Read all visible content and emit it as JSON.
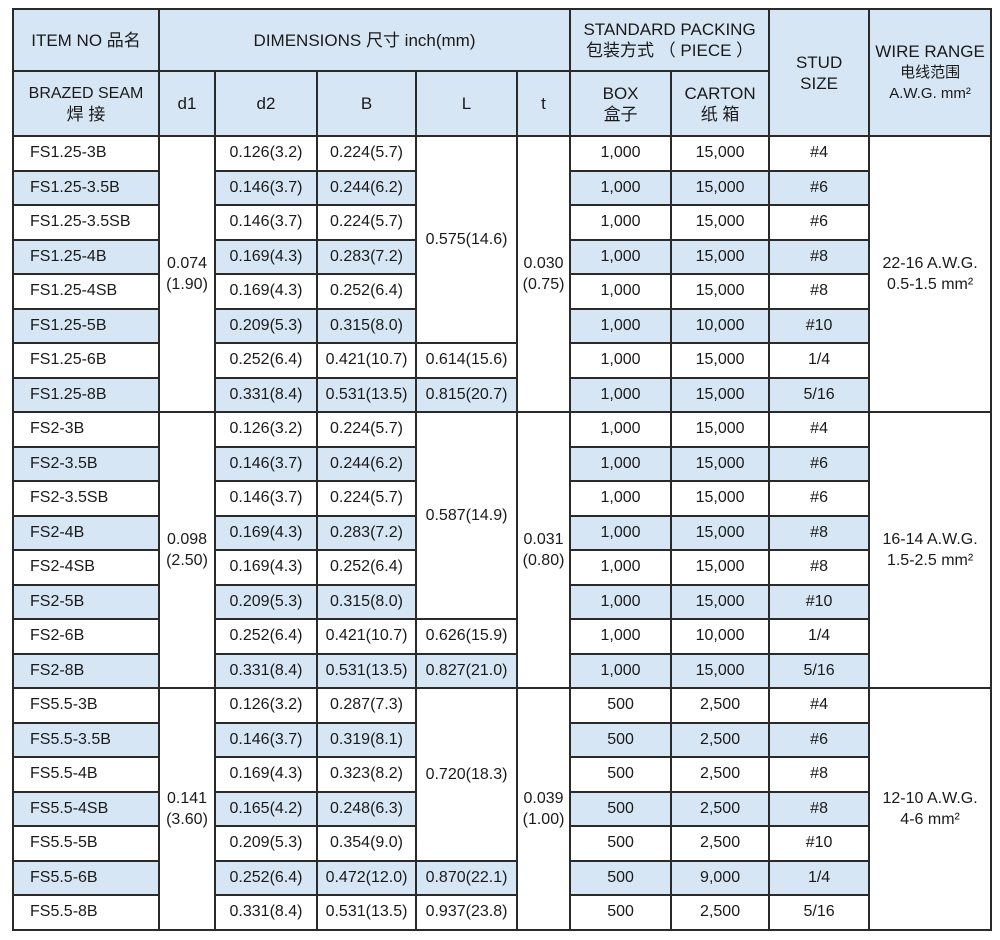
{
  "header": {
    "item_no": "ITEM NO 品名",
    "dimensions": "DIMENSIONS 尺寸  inch(mm)",
    "standard_packing": "STANDARD PACKING",
    "standard_packing_cn": "包装方式 （ PIECE ）",
    "stud_size": "STUD SIZE",
    "wire_range": "WIRE RANGE",
    "wire_range_cn": "电线范围",
    "wire_range_unit": "A.W.G.  mm²",
    "brazed_seam": "BRAZED  SEAM",
    "brazed_seam_cn": "焊  接",
    "d1": "d1",
    "d2": "d2",
    "B": "B",
    "L": "L",
    "t": "t",
    "box": "BOX",
    "box_cn": "盒子",
    "carton": "CARTON",
    "carton_cn": "纸 箱"
  },
  "colors": {
    "header_bg": "#d7e6f4",
    "alt_row_bg": "#d7e6f4",
    "border": "#2a2a2a"
  },
  "groups": [
    {
      "d1": "0.074 (1.90)",
      "t": "0.030 (0.75)",
      "wire": "22-16 A.W.G. 0.5-1.5  mm²",
      "L_shared": "0.575(14.6)",
      "L_shared_rows": 6,
      "rows": [
        {
          "item": "FS1.25-3B",
          "d2": "0.126(3.2)",
          "B": "0.224(5.7)",
          "box": "1,000",
          "carton": "15,000",
          "stud": "#4"
        },
        {
          "item": "FS1.25-3.5B",
          "d2": "0.146(3.7)",
          "B": "0.244(6.2)",
          "box": "1,000",
          "carton": "15,000",
          "stud": "#6"
        },
        {
          "item": "FS1.25-3.5SB",
          "d2": "0.146(3.7)",
          "B": "0.224(5.7)",
          "box": "1,000",
          "carton": "15,000",
          "stud": "#6"
        },
        {
          "item": "FS1.25-4B",
          "d2": "0.169(4.3)",
          "B": "0.283(7.2)",
          "box": "1,000",
          "carton": "15,000",
          "stud": "#8"
        },
        {
          "item": "FS1.25-4SB",
          "d2": "0.169(4.3)",
          "B": "0.252(6.4)",
          "box": "1,000",
          "carton": "15,000",
          "stud": "#8"
        },
        {
          "item": "FS1.25-5B",
          "d2": "0.209(5.3)",
          "B": "0.315(8.0)",
          "box": "1,000",
          "carton": "10,000",
          "stud": "#10"
        },
        {
          "item": "FS1.25-6B",
          "d2": "0.252(6.4)",
          "B": "0.421(10.7)",
          "L": "0.614(15.6)",
          "box": "1,000",
          "carton": "15,000",
          "stud": "1/4"
        },
        {
          "item": "FS1.25-8B",
          "d2": "0.331(8.4)",
          "B": "0.531(13.5)",
          "L": "0.815(20.7)",
          "box": "1,000",
          "carton": "15,000",
          "stud": "5/16"
        }
      ]
    },
    {
      "d1": "0.098 (2.50)",
      "t": "0.031 (0.80)",
      "wire": "16-14 A.W.G. 1.5-2.5  mm²",
      "L_shared": "0.587(14.9)",
      "L_shared_rows": 6,
      "rows": [
        {
          "item": "FS2-3B",
          "d2": "0.126(3.2)",
          "B": "0.224(5.7)",
          "box": "1,000",
          "carton": "15,000",
          "stud": "#4"
        },
        {
          "item": "FS2-3.5B",
          "d2": "0.146(3.7)",
          "B": "0.244(6.2)",
          "box": "1,000",
          "carton": "15,000",
          "stud": "#6"
        },
        {
          "item": "FS2-3.5SB",
          "d2": "0.146(3.7)",
          "B": "0.224(5.7)",
          "box": "1,000",
          "carton": "15,000",
          "stud": "#6"
        },
        {
          "item": "FS2-4B",
          "d2": "0.169(4.3)",
          "B": "0.283(7.2)",
          "box": "1,000",
          "carton": "15,000",
          "stud": "#8"
        },
        {
          "item": "FS2-4SB",
          "d2": "0.169(4.3)",
          "B": "0.252(6.4)",
          "box": "1,000",
          "carton": "15,000",
          "stud": "#8"
        },
        {
          "item": "FS2-5B",
          "d2": "0.209(5.3)",
          "B": "0.315(8.0)",
          "box": "1,000",
          "carton": "15,000",
          "stud": "#10"
        },
        {
          "item": "FS2-6B",
          "d2": "0.252(6.4)",
          "B": "0.421(10.7)",
          "L": "0.626(15.9)",
          "box": "1,000",
          "carton": "10,000",
          "stud": "1/4"
        },
        {
          "item": "FS2-8B",
          "d2": "0.331(8.4)",
          "B": "0.531(13.5)",
          "L": "0.827(21.0)",
          "box": "1,000",
          "carton": "15,000",
          "stud": "5/16"
        }
      ]
    },
    {
      "d1": "0.141 (3.60)",
      "t": "0.039 (1.00)",
      "wire": "12-10 A.W.G. 4-6  mm²",
      "L_shared": "0.720(18.3)",
      "L_shared_rows": 5,
      "rows": [
        {
          "item": "FS5.5-3B",
          "d2": "0.126(3.2)",
          "B": "0.287(7.3)",
          "box": "500",
          "carton": "2,500",
          "stud": "#4"
        },
        {
          "item": "FS5.5-3.5B",
          "d2": "0.146(3.7)",
          "B": "0.319(8.1)",
          "box": "500",
          "carton": "2,500",
          "stud": "#6"
        },
        {
          "item": "FS5.5-4B",
          "d2": "0.169(4.3)",
          "B": "0.323(8.2)",
          "box": "500",
          "carton": "2,500",
          "stud": "#8"
        },
        {
          "item": "FS5.5-4SB",
          "d2": "0.165(4.2)",
          "B": "0.248(6.3)",
          "box": "500",
          "carton": "2,500",
          "stud": "#8"
        },
        {
          "item": "FS5.5-5B",
          "d2": "0.209(5.3)",
          "B": "0.354(9.0)",
          "box": "500",
          "carton": "2,500",
          "stud": "#10"
        },
        {
          "item": "FS5.5-6B",
          "d2": "0.252(6.4)",
          "B": "0.472(12.0)",
          "L": "0.870(22.1)",
          "box": "500",
          "carton": "9,000",
          "stud": "1/4"
        },
        {
          "item": "FS5.5-8B",
          "d2": "0.331(8.4)",
          "B": "0.531(13.5)",
          "L": "0.937(23.8)",
          "box": "500",
          "carton": "2,500",
          "stud": "5/16"
        }
      ]
    }
  ]
}
